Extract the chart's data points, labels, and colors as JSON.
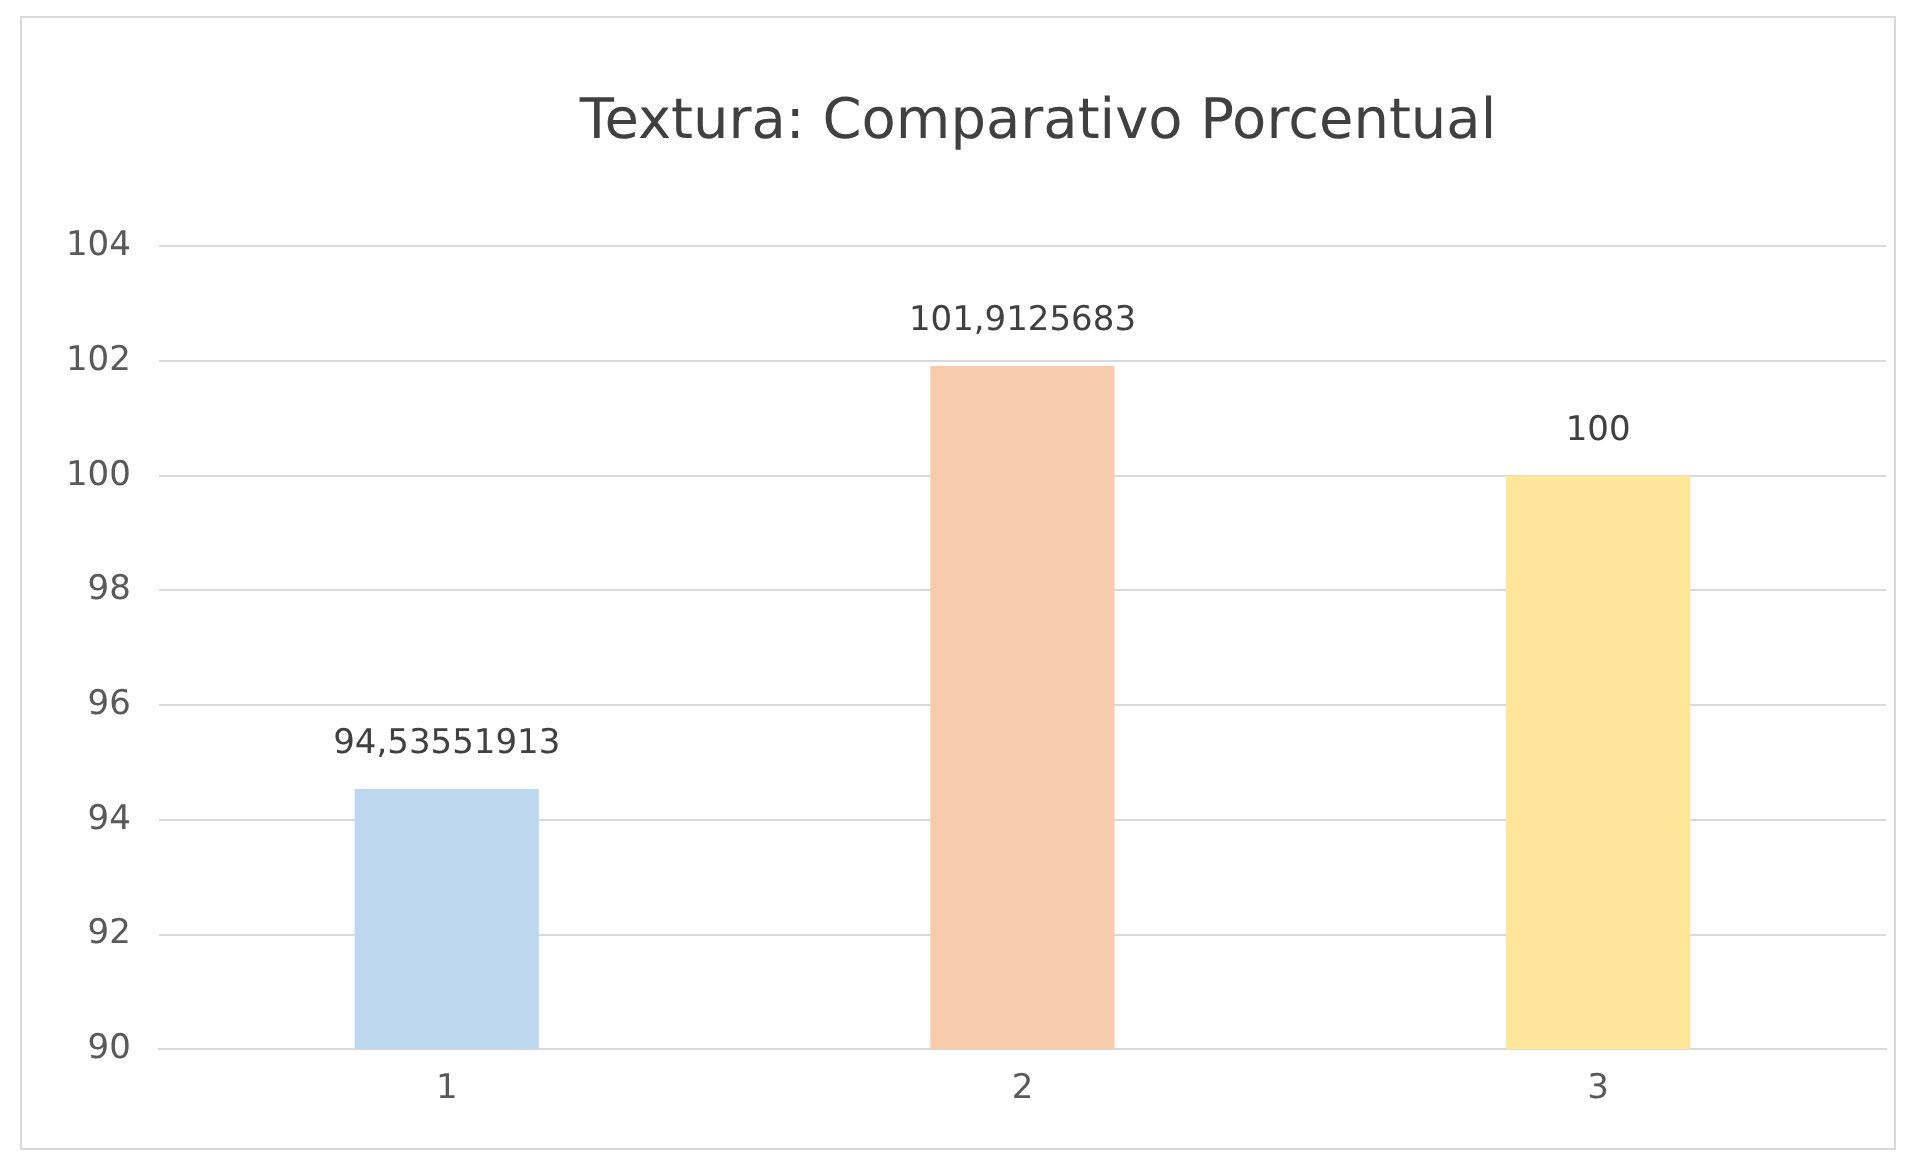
{
  "chart_data": {
    "type": "bar",
    "title": "Textura: Comparativo Porcentual",
    "categories": [
      "1",
      "2",
      "3"
    ],
    "values": [
      94.53551913,
      101.9125683,
      100
    ],
    "colors": [
      "#bdd7ee",
      "#f8cbad",
      "#ffe699"
    ],
    "value_labels": [
      "94,53551913",
      "101,9125683",
      "100"
    ],
    "ylim": [
      90,
      104
    ],
    "yticks": [
      90,
      92,
      94,
      96,
      98,
      100,
      102,
      104
    ],
    "grid": "y",
    "legend": false
  }
}
